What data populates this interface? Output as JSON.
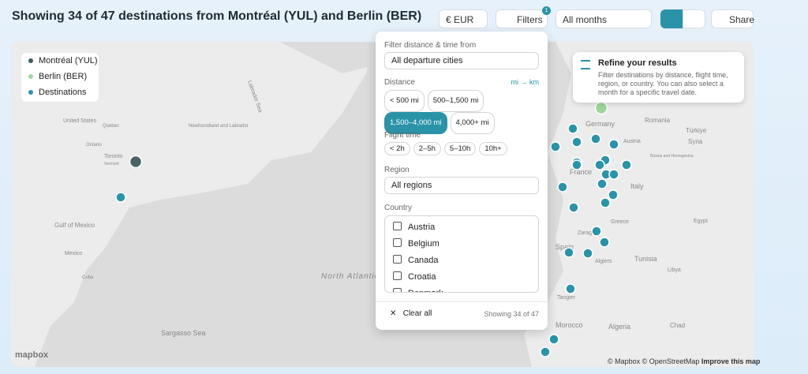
{
  "header": {
    "title": "Showing 34 of 47 destinations from Montréal (YUL) and Berlin (BER)",
    "currency": "€ EUR",
    "filters": "Filters",
    "filters_badge": "1",
    "months": "All months",
    "share": "Share"
  },
  "legend": [
    "Montréal (YUL)",
    "Berlin (BER)",
    "Destinations"
  ],
  "filter_panel": {
    "from_label": "Filter distance & time from",
    "from_value": "All departure cities",
    "distance_label": "Distance",
    "unit_toggle": "mi → km",
    "distance_options": [
      "< 500 mi",
      "500–1,500 mi",
      "1,500–4,000 mi",
      "4,000+ mi"
    ],
    "distance_selected": 2,
    "flight_time_label": "Flight time",
    "flight_time_options": [
      "< 2h",
      "2–5h",
      "5–10h",
      "10h+"
    ],
    "region_label": "Region",
    "region_value": "All regions",
    "country_label": "Country",
    "countries": [
      "Austria",
      "Belgium",
      "Canada",
      "Croatia",
      "Denmark"
    ],
    "clear": "Clear all",
    "showing": "Showing 34 of 47"
  },
  "tip": {
    "title": "Refine your results",
    "body": "Filter destinations by distance, flight time, region, or country. You can also select a month for a specific travel date."
  },
  "map": {
    "labels": [
      "United States",
      "Quebec",
      "Ontario",
      "Toronto",
      "Vermont",
      "Newfoundland and Labrador",
      "Labrador Sea",
      "Gulf of Mexico",
      "Mexico",
      "Cuba",
      "Sargasso Sea",
      "North Atlantic Ocean",
      "Germany",
      "Romania",
      "Türkiye",
      "Syria",
      "Austria",
      "France",
      "Italy",
      "Bosnia and Herzegovina",
      "Spain",
      "Zaragoza",
      "Algiers",
      "Tunisia",
      "Libya",
      "Egypt",
      "Morocco",
      "Algeria",
      "Chad",
      "Tangier",
      "Greece"
    ],
    "logo": "mapbox",
    "attribution": [
      "© Mapbox",
      "© OpenStreetMap",
      "Improve this map"
    ]
  }
}
